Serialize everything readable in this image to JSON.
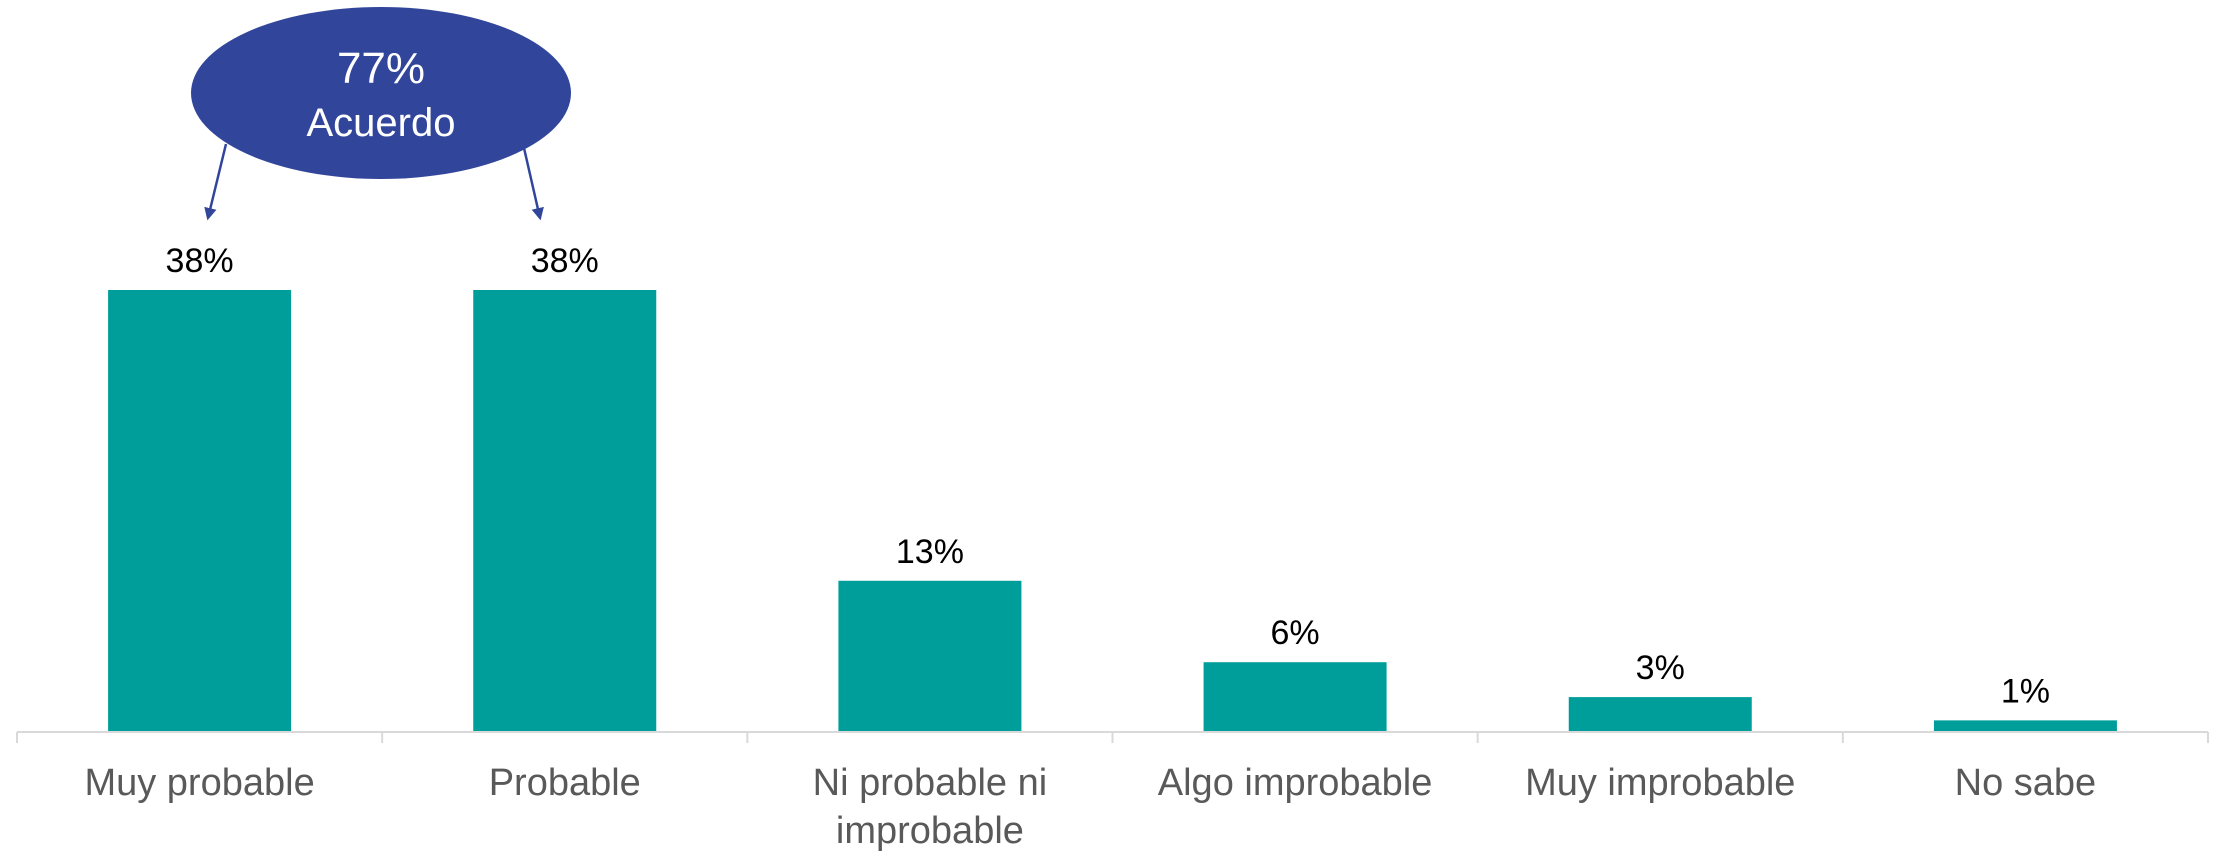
{
  "chart_data": {
    "type": "bar",
    "categories": [
      "Muy probable",
      "Probable",
      "Ni probable ni improbable",
      "Algo improbable",
      "Muy improbable",
      "No sabe"
    ],
    "category_lines": [
      [
        "Muy probable"
      ],
      [
        "Probable"
      ],
      [
        "Ni probable ni",
        "improbable"
      ],
      [
        "Algo improbable"
      ],
      [
        "Muy improbable"
      ],
      [
        "No sabe"
      ]
    ],
    "values": [
      38,
      38,
      13,
      6,
      3,
      1
    ],
    "value_labels": [
      "38%",
      "38%",
      "13%",
      "6%",
      "3%",
      "1%"
    ],
    "ylim": [
      0,
      38
    ],
    "grid": false,
    "legend": "none",
    "bar_color": "#009E9A",
    "axis_color": "#D9D9D9",
    "annotation": {
      "value": "77%",
      "label": "Acuerdo",
      "fill_color": "#31469B",
      "points_to": [
        "Muy probable",
        "Probable"
      ]
    }
  }
}
